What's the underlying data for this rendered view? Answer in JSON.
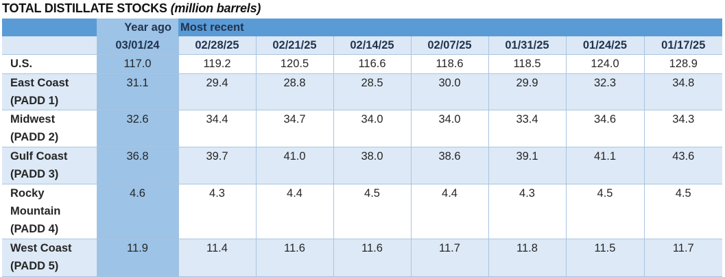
{
  "title": {
    "main": "TOTAL DISTILLATE STOCKS",
    "unit": "(million barrels)"
  },
  "header": {
    "year_ago": "Year ago",
    "most_recent": "Most recent"
  },
  "dates": [
    "03/01/24",
    "02/28/25",
    "02/21/25",
    "02/14/25",
    "02/07/25",
    "01/31/25",
    "01/24/25",
    "01/17/25"
  ],
  "rows": [
    {
      "label": [
        "U.S."
      ],
      "values": [
        "117.0",
        "119.2",
        "120.5",
        "116.6",
        "118.6",
        "118.5",
        "124.0",
        "128.9"
      ]
    },
    {
      "label": [
        "East Coast",
        "(PADD 1)"
      ],
      "values": [
        "31.1",
        "29.4",
        "28.8",
        "28.5",
        "30.0",
        "29.9",
        "32.3",
        "34.8"
      ]
    },
    {
      "label": [
        "Midwest",
        "(PADD 2)"
      ],
      "values": [
        "32.6",
        "34.4",
        "34.7",
        "34.0",
        "34.0",
        "33.4",
        "34.6",
        "34.3"
      ]
    },
    {
      "label": [
        "Gulf Coast",
        "(PADD 3)"
      ],
      "values": [
        "36.8",
        "39.7",
        "41.0",
        "38.0",
        "38.6",
        "39.1",
        "41.1",
        "43.6"
      ]
    },
    {
      "label": [
        "Rocky",
        "Mountain",
        "(PADD 4)"
      ],
      "values": [
        "4.6",
        "4.3",
        "4.4",
        "4.5",
        "4.4",
        "4.3",
        "4.5",
        "4.5"
      ]
    },
    {
      "label": [
        "West Coast",
        "(PADD 5)"
      ],
      "values": [
        "11.9",
        "11.4",
        "11.6",
        "11.6",
        "11.7",
        "11.8",
        "11.5",
        "11.7"
      ]
    }
  ],
  "colors": {
    "header": "#5b9bd5",
    "year_ago_column": "#9dc3e6",
    "band": "#dde9f6"
  }
}
